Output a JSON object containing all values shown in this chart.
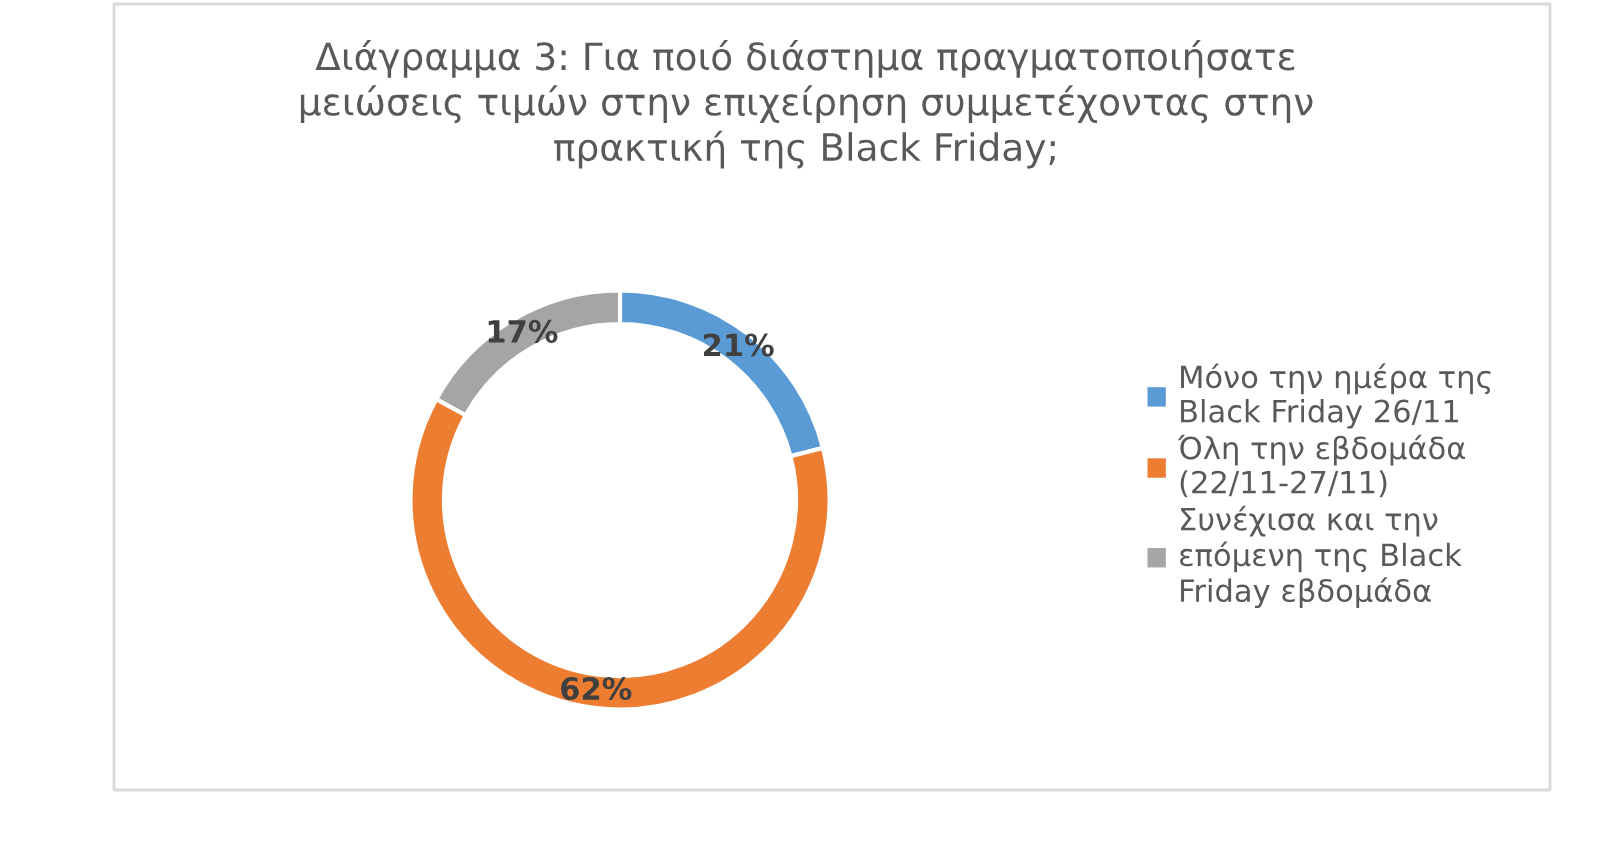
{
  "chart_data": {
    "type": "donut",
    "title": "Διάγραμμα 3: Για ποιό διάστημα πραγματοποιήσατε μειώσεις τιμών στην επιχείρηση συμμετέχοντας στην πρακτική της Black Friday;",
    "categories": [
      "Μόνο την ημέρα της Black Friday 26/11",
      "Όλη την εβδομάδα (22/11-27/11)",
      "Συνέχισα και την επόμενη της Black Friday εβδομάδα"
    ],
    "values": [
      21,
      62,
      17
    ],
    "colors": [
      "#5b9bd5",
      "#ed7d31",
      "#a5a5a5"
    ],
    "value_labels": [
      "21%",
      "62%",
      "17%"
    ],
    "legend": "right"
  }
}
